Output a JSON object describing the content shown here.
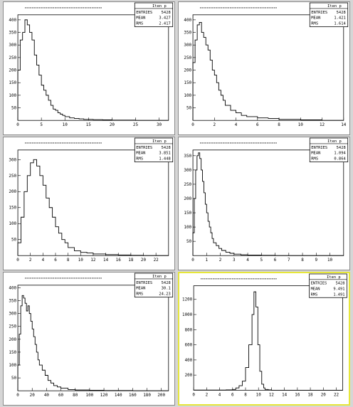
{
  "stats_labels": {
    "entries": "ENTRIES",
    "mean": "MEAN",
    "rms": "RMS"
  },
  "chart_data": [
    {
      "type": "histogram",
      "stats": {
        "title": "Iten p",
        "entries": "5428",
        "mean": "3.427",
        "rms": "2.417"
      },
      "xlim": [
        0,
        32
      ],
      "ylim": [
        0,
        420
      ],
      "xticks": [
        "0",
        "5",
        "10",
        "15",
        "20",
        "25",
        "30"
      ],
      "yticks": [
        "50",
        "100",
        "150",
        "200",
        "250",
        "300",
        "350",
        "400"
      ],
      "x": [
        0.5,
        1,
        1.5,
        2,
        2.5,
        3,
        3.5,
        4,
        4.5,
        5,
        5.5,
        6,
        6.5,
        7,
        7.5,
        8,
        8.5,
        9,
        9.5,
        10,
        11,
        12,
        13,
        14,
        16,
        18,
        20,
        25,
        30
      ],
      "values": [
        200,
        320,
        350,
        400,
        380,
        350,
        320,
        260,
        220,
        180,
        140,
        120,
        100,
        80,
        60,
        45,
        40,
        30,
        25,
        20,
        15,
        10,
        8,
        6,
        4,
        3,
        2,
        1,
        0
      ]
    },
    {
      "type": "histogram",
      "stats": {
        "title": "Iten p",
        "entries": "5428",
        "mean": "1.421",
        "rms": "1.614"
      },
      "xlim": [
        0,
        14
      ],
      "ylim": [
        0,
        420
      ],
      "xticks": [
        "0",
        "2",
        "4",
        "6",
        "8",
        "10",
        "12",
        "14"
      ],
      "yticks": [
        "50",
        "100",
        "150",
        "200",
        "250",
        "300",
        "350",
        "400"
      ],
      "x": [
        0.2,
        0.4,
        0.6,
        0.8,
        1,
        1.2,
        1.4,
        1.6,
        1.8,
        2,
        2.2,
        2.4,
        2.6,
        2.8,
        3,
        3.5,
        4,
        4.5,
        5,
        6,
        7,
        8,
        10,
        12,
        14
      ],
      "values": [
        230,
        320,
        380,
        390,
        350,
        330,
        300,
        280,
        240,
        200,
        180,
        150,
        120,
        100,
        80,
        60,
        40,
        30,
        20,
        15,
        10,
        8,
        4,
        2,
        0
      ]
    },
    {
      "type": "histogram",
      "stats": {
        "title": "Iten p",
        "entries": "5428",
        "mean": "3.851",
        "rms": "1.448"
      },
      "xlim": [
        0,
        24
      ],
      "ylim": [
        0,
        330
      ],
      "xticks": [
        "0",
        "2",
        "4",
        "6",
        "8",
        "10",
        "12",
        "14",
        "16",
        "18",
        "20",
        "22"
      ],
      "yticks": [
        "50",
        "100",
        "150",
        "200",
        "250",
        "300"
      ],
      "x": [
        0.5,
        1,
        1.5,
        2,
        2.5,
        3,
        3.5,
        4,
        4.5,
        5,
        5.5,
        6,
        6.5,
        7,
        7.5,
        8,
        9,
        10,
        11,
        12,
        14,
        16,
        18,
        20,
        22
      ],
      "values": [
        40,
        120,
        200,
        250,
        290,
        300,
        280,
        250,
        220,
        180,
        150,
        120,
        90,
        70,
        50,
        40,
        25,
        15,
        10,
        8,
        5,
        3,
        2,
        1,
        0
      ]
    },
    {
      "type": "histogram",
      "stats": {
        "title": "Iten p",
        "entries": "5428",
        "mean": "1.094",
        "rms": "0.864"
      },
      "xlim": [
        0,
        11
      ],
      "ylim": [
        0,
        370
      ],
      "xticks": [
        "0",
        "1",
        "2",
        "3",
        "4",
        "5",
        "6",
        "7",
        "8",
        "9",
        "10"
      ],
      "yticks": [
        "50",
        "100",
        "150",
        "200",
        "250",
        "300",
        "350"
      ],
      "x": [
        0.1,
        0.2,
        0.3,
        0.4,
        0.5,
        0.6,
        0.7,
        0.8,
        0.9,
        1,
        1.1,
        1.2,
        1.3,
        1.4,
        1.5,
        1.7,
        1.9,
        2.1,
        2.4,
        2.7,
        3,
        3.5,
        4,
        5,
        6,
        8,
        10
      ],
      "values": [
        80,
        200,
        300,
        350,
        360,
        340,
        300,
        260,
        220,
        180,
        150,
        120,
        100,
        80,
        60,
        45,
        35,
        25,
        18,
        12,
        8,
        5,
        3,
        2,
        1,
        0,
        0
      ]
    },
    {
      "type": "histogram",
      "stats": {
        "title": "Iten p",
        "entries": "5428",
        "mean": "30.1",
        "rms": "24.23"
      },
      "xlim": [
        0,
        210
      ],
      "ylim": [
        0,
        410
      ],
      "xticks": [
        "0",
        "20",
        "40",
        "60",
        "80",
        "100",
        "120",
        "140",
        "160",
        "180",
        "200"
      ],
      "yticks": [
        "50",
        "100",
        "150",
        "200",
        "250",
        "300",
        "350",
        "400"
      ],
      "x": [
        2,
        4,
        6,
        8,
        10,
        12,
        14,
        16,
        18,
        20,
        22,
        24,
        26,
        28,
        30,
        34,
        38,
        42,
        46,
        50,
        55,
        60,
        70,
        80,
        100,
        120,
        160,
        200
      ],
      "values": [
        100,
        220,
        330,
        370,
        360,
        340,
        310,
        330,
        300,
        270,
        240,
        210,
        180,
        150,
        120,
        100,
        80,
        60,
        40,
        30,
        20,
        15,
        10,
        5,
        3,
        2,
        1,
        0
      ]
    },
    {
      "type": "histogram",
      "stats": {
        "title": "Iten p",
        "entries": "5428",
        "mean": "9.491",
        "rms": "1.491"
      },
      "xlim": [
        0,
        23
      ],
      "ylim": [
        0,
        1380
      ],
      "xticks": [
        "0",
        "2",
        "4",
        "6",
        "8",
        "10",
        "12",
        "14",
        "16",
        "18",
        "20",
        "22"
      ],
      "yticks": [
        "200",
        "400",
        "600",
        "800",
        "1000",
        "1200"
      ],
      "x": [
        5,
        6,
        6.5,
        7,
        7.5,
        8,
        8.5,
        9,
        9.3,
        9.6,
        9.9,
        10.2,
        10.5,
        10.8,
        11,
        11.5,
        12,
        13
      ],
      "values": [
        2,
        5,
        10,
        30,
        60,
        120,
        300,
        600,
        1000,
        1300,
        1100,
        600,
        250,
        80,
        30,
        10,
        5,
        0
      ]
    }
  ]
}
